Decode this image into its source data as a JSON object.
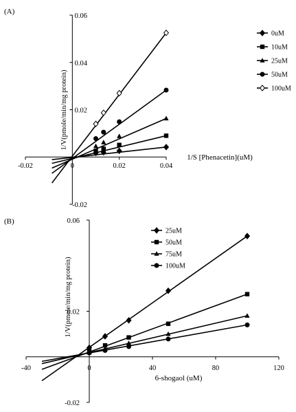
{
  "chart_data": [
    {
      "type": "line",
      "panel_label": "(A)",
      "xlabel": "1/S [Phenacetin](uM)",
      "ylabel": "1/V(pmole/min/mg protein)",
      "xlim": [
        -0.02,
        0.04
      ],
      "ylim": [
        -0.02,
        0.06
      ],
      "x_ticks": [
        -0.02,
        0,
        0.02,
        0.04
      ],
      "x_tick_labels": [
        "-0.02",
        "0",
        "0.02",
        "0.04"
      ],
      "y_ticks": [
        -0.02,
        0,
        0.02,
        0.04,
        0.06
      ],
      "y_tick_labels": [
        "-0.02",
        "",
        "0.02",
        "0.04",
        "0.06"
      ],
      "grid": false,
      "legend_position": "right",
      "x": [
        0.01,
        0.0133,
        0.02,
        0.04
      ],
      "series": [
        {
          "name": "0uM",
          "marker": "diamond",
          "values": [
            0.0017,
            0.002,
            0.0026,
            0.0042
          ],
          "line_x": [
            -0.0087,
            0.04
          ],
          "line_y": [
            -0.0011,
            0.0042
          ]
        },
        {
          "name": "10uM",
          "marker": "square",
          "values": [
            0.0026,
            0.0035,
            0.0051,
            0.009
          ],
          "line_x": [
            -0.0087,
            0.04
          ],
          "line_y": [
            -0.0027,
            0.009
          ]
        },
        {
          "name": "25uM",
          "marker": "triangle",
          "values": [
            0.0046,
            0.0062,
            0.0088,
            0.0163
          ],
          "line_x": [
            -0.0087,
            0.04
          ],
          "line_y": [
            -0.0047,
            0.0163
          ]
        },
        {
          "name": "50uM",
          "marker": "circle",
          "values": [
            0.0078,
            0.0105,
            0.0149,
            0.0283
          ],
          "line_x": [
            -0.0087,
            0.04
          ],
          "line_y": [
            -0.0069,
            0.0283
          ]
        },
        {
          "name": "100uM",
          "marker": "open-diamond",
          "values": [
            0.014,
            0.0187,
            0.027,
            0.0525
          ],
          "line_x": [
            -0.0087,
            0.04
          ],
          "line_y": [
            -0.011,
            0.0525
          ]
        }
      ]
    },
    {
      "type": "line",
      "panel_label": "(B)",
      "xlabel": "6-shogaol (uM)",
      "ylabel": "1/V(pmole/min/mg protein)",
      "xlim": [
        -40,
        120
      ],
      "ylim": [
        -0.02,
        0.06
      ],
      "x_ticks": [
        -40,
        0,
        40,
        80,
        120
      ],
      "x_tick_labels": [
        "-40",
        "0",
        "40",
        "80",
        "120"
      ],
      "y_ticks": [
        -0.02,
        0.02,
        0.06
      ],
      "y_tick_labels": [
        "-0.02",
        "0.02",
        "0.06"
      ],
      "grid": false,
      "legend_position": "top-left",
      "x": [
        0,
        10,
        25,
        50,
        100
      ],
      "series": [
        {
          "name": "25uM",
          "marker": "diamond",
          "values": [
            0.004,
            0.009,
            0.016,
            0.029,
            0.053
          ],
          "line_x": [
            -30,
            100
          ],
          "line_y": [
            -0.0105,
            0.053
          ]
        },
        {
          "name": "50uM",
          "marker": "square",
          "values": [
            0.0025,
            0.005,
            0.0085,
            0.0145,
            0.0275
          ],
          "line_x": [
            -30,
            100
          ],
          "line_y": [
            -0.0055,
            0.0275
          ]
        },
        {
          "name": "75uM",
          "marker": "triangle",
          "values": [
            0.002,
            0.0035,
            0.006,
            0.01,
            0.018
          ],
          "line_x": [
            -30,
            100
          ],
          "line_y": [
            -0.003,
            0.018
          ]
        },
        {
          "name": "100uM",
          "marker": "circle",
          "values": [
            0.0017,
            0.0028,
            0.0045,
            0.0078,
            0.014
          ],
          "line_x": [
            -30,
            100
          ],
          "line_y": [
            -0.002,
            0.014
          ]
        }
      ]
    }
  ]
}
